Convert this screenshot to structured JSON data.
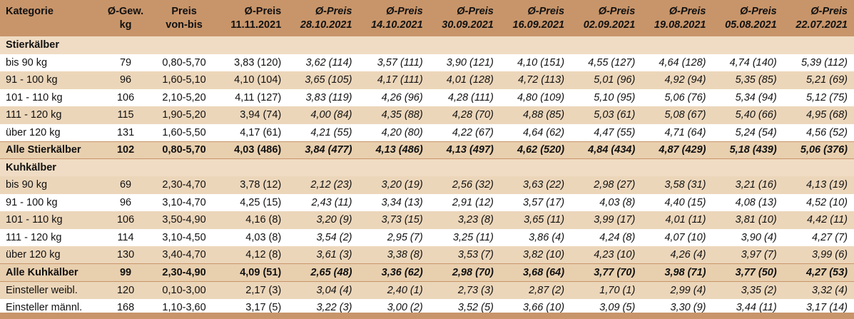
{
  "header": {
    "kategorie": "Kategorie",
    "gew": [
      "Ø-Gew.",
      "kg"
    ],
    "preis": [
      "Preis",
      "von-bis"
    ],
    "columns": [
      [
        "Ø-Preis",
        "11.11.2021"
      ],
      [
        "Ø-Preis",
        "28.10.2021"
      ],
      [
        "Ø-Preis",
        "14.10.2021"
      ],
      [
        "Ø-Preis",
        "30.09.2021"
      ],
      [
        "Ø-Preis",
        "16.09.2021"
      ],
      [
        "Ø-Preis",
        "02.09.2021"
      ],
      [
        "Ø-Preis",
        "19.08.2021"
      ],
      [
        "Ø-Preis",
        "05.08.2021"
      ],
      [
        "Ø-Preis",
        "22.07.2021"
      ]
    ]
  },
  "stier": {
    "title": "Stierkälber",
    "rows": [
      [
        "bis 90 kg",
        "79",
        "0,80-5,70",
        "3,83 (120)",
        "3,62 (114)",
        "3,57 (111)",
        "3,90 (121)",
        "4,10 (151)",
        "4,55 (127)",
        "4,64 (128)",
        "4,74 (140)",
        "5,39 (112)"
      ],
      [
        "91 - 100 kg",
        "96",
        "1,60-5,10",
        "4,10 (104)",
        "3,65 (105)",
        "4,17 (111)",
        "4,01 (128)",
        "4,72 (113)",
        "5,01 (96)",
        "4,92 (94)",
        "5,35 (85)",
        "5,21 (69)"
      ],
      [
        "101 - 110 kg",
        "106",
        "2,10-5,20",
        "4,11 (127)",
        "3,83 (119)",
        "4,26 (96)",
        "4,28 (111)",
        "4,80 (109)",
        "5,10 (95)",
        "5,06 (76)",
        "5,34 (94)",
        "5,12 (75)"
      ],
      [
        "111 - 120 kg",
        "115",
        "1,90-5,20",
        "3,94 (74)",
        "4,00 (84)",
        "4,35 (88)",
        "4,28 (70)",
        "4,88 (85)",
        "5,03 (61)",
        "5,08 (67)",
        "5,40 (66)",
        "4,95 (68)"
      ],
      [
        "über 120 kg",
        "131",
        "1,60-5,50",
        "4,17 (61)",
        "4,21 (55)",
        "4,20 (80)",
        "4,22 (67)",
        "4,64 (62)",
        "4,47 (55)",
        "4,71 (64)",
        "5,24 (54)",
        "4,56 (52)"
      ]
    ],
    "total": [
      "Alle Stierkälber",
      "102",
      "0,80-5,70",
      "4,03 (486)",
      "3,84 (477)",
      "4,13 (486)",
      "4,13 (497)",
      "4,62 (520)",
      "4,84 (434)",
      "4,87 (429)",
      "5,18 (439)",
      "5,06 (376)"
    ]
  },
  "kuh": {
    "title": "Kuhkälber",
    "rows": [
      [
        "bis 90 kg",
        "69",
        "2,30-4,70",
        "3,78 (12)",
        "2,12 (23)",
        "3,20 (19)",
        "2,56 (32)",
        "3,63 (22)",
        "2,98 (27)",
        "3,58 (31)",
        "3,21 (16)",
        "4,13 (19)"
      ],
      [
        "91 - 100 kg",
        "96",
        "3,10-4,70",
        "4,25 (15)",
        "2,43 (11)",
        "3,34 (13)",
        "2,91 (12)",
        "3,57 (17)",
        "4,03 (8)",
        "4,40 (15)",
        "4,08 (13)",
        "4,52 (10)"
      ],
      [
        "101 - 110 kg",
        "106",
        "3,50-4,90",
        "4,16 (8)",
        "3,20 (9)",
        "3,73 (15)",
        "3,23 (8)",
        "3,65 (11)",
        "3,99 (17)",
        "4,01 (11)",
        "3,81 (10)",
        "4,42 (11)"
      ],
      [
        "111 - 120 kg",
        "114",
        "3,10-4,50",
        "4,03 (8)",
        "3,54 (2)",
        "2,95 (7)",
        "3,25 (11)",
        "3,86 (4)",
        "4,24 (8)",
        "4,07 (10)",
        "3,90 (4)",
        "4,27 (7)"
      ],
      [
        "über 120 kg",
        "130",
        "3,40-4,70",
        "4,12 (8)",
        "3,61 (3)",
        "3,38 (8)",
        "3,53 (7)",
        "3,82 (10)",
        "4,23 (10)",
        "4,26 (4)",
        "3,97 (7)",
        "3,99 (6)"
      ]
    ],
    "total": [
      "Alle Kuhkälber",
      "99",
      "2,30-4,90",
      "4,09 (51)",
      "2,65 (48)",
      "3,36 (62)",
      "2,98 (70)",
      "3,68 (64)",
      "3,77 (70)",
      "3,98 (71)",
      "3,77 (50)",
      "4,27 (53)"
    ]
  },
  "einsteller": [
    [
      "Einsteller weibl.",
      "120",
      "0,10-3,00",
      "2,17 (3)",
      "3,04 (4)",
      "2,40 (1)",
      "2,73 (3)",
      "2,87 (2)",
      "1,70 (1)",
      "2,99 (4)",
      "3,35 (2)",
      "3,32 (4)"
    ],
    [
      "Einsteller männl.",
      "168",
      "1,10-3,60",
      "3,17 (5)",
      "3,22 (3)",
      "3,00 (2)",
      "3,52 (5)",
      "3,66 (10)",
      "3,09 (5)",
      "3,30 (9)",
      "3,44 (11)",
      "3,17 (14)"
    ]
  ],
  "colors": {
    "header": "#c8956a",
    "band": "#ecd6ba",
    "section": "#f0dcc4"
  }
}
